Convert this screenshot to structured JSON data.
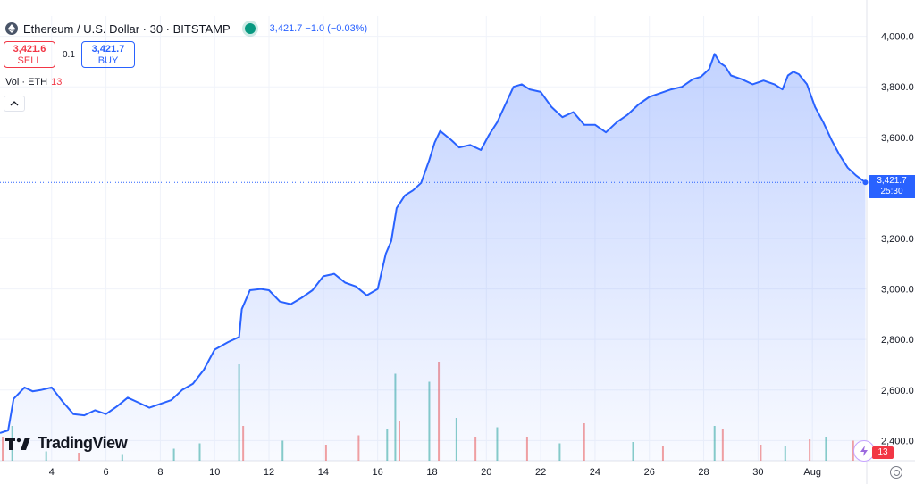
{
  "header": {
    "symbol_title": "Ethereum / U.S. Dollar · 30 · BITSTAMP",
    "last_info": "3,421.7  −1.0 (−0.03%)",
    "up_color": "#089981",
    "accent_color": "#2962ff"
  },
  "trade": {
    "sell_price": "3,421.6",
    "sell_label": "SELL",
    "spread": "0.1",
    "buy_price": "3,421.7",
    "buy_label": "BUY"
  },
  "volume_legend": {
    "label": "Vol · ETH",
    "value": "13"
  },
  "branding": {
    "logo_text": "TradingView"
  },
  "price_tag": {
    "price": "3,421.7",
    "countdown": "25:30"
  },
  "volume_tag": "13",
  "icons": [
    "ethereum-icon",
    "status-dot-icon",
    "chevron-up-icon",
    "tradingview-logo-icon",
    "lightning-icon",
    "settings-icon"
  ],
  "chart_data": {
    "type": "area",
    "title": "Ethereum / U.S. Dollar · 30 · BITSTAMP",
    "xlabel": "",
    "ylabel": "",
    "x_tick_labels": [
      "4",
      "6",
      "8",
      "10",
      "12",
      "14",
      "16",
      "18",
      "20",
      "22",
      "24",
      "26",
      "28",
      "30",
      "Aug"
    ],
    "x_tick_days": [
      4,
      6,
      8,
      10,
      12,
      14,
      16,
      18,
      20,
      22,
      24,
      26,
      28,
      30,
      32
    ],
    "y_tick_values": [
      2400,
      2600,
      2800,
      3000,
      3200,
      3400,
      3600,
      3800,
      4000
    ],
    "y_tick_labels": [
      "2,400.0",
      "2,600.0",
      "2,800.0",
      "3,000.0",
      "3,200.0",
      "3,400.0",
      "3,600.0",
      "3,800.0",
      "4,000.0"
    ],
    "ylim": [
      2320,
      4080
    ],
    "xlim": [
      2.1,
      34.0
    ],
    "grid": true,
    "last_value": 3421.7,
    "series": [
      {
        "x": [
          2.1,
          2.4,
          2.6,
          3.0,
          3.3,
          3.6,
          4.0,
          4.4,
          4.8,
          5.2,
          5.6,
          6.0,
          6.4,
          6.8,
          7.2,
          7.6,
          8.0,
          8.4,
          8.8,
          9.2,
          9.6,
          10.0,
          10.5,
          10.9,
          11.0,
          11.3,
          11.7,
          12.0,
          12.4,
          12.8,
          13.2,
          13.6,
          14.0,
          14.4,
          14.8,
          15.2,
          15.6,
          16.0,
          16.3,
          16.5,
          16.7,
          17.0,
          17.3,
          17.6,
          17.9,
          18.1,
          18.3,
          18.7,
          19.0,
          19.4,
          19.8,
          20.1,
          20.4,
          20.7,
          21.0,
          21.3,
          21.6,
          22.0,
          22.4,
          22.8,
          23.2,
          23.6,
          24.0,
          24.4,
          24.8,
          25.2,
          25.6,
          26.0,
          26.4,
          26.8,
          27.2,
          27.6,
          27.9,
          28.2,
          28.4,
          28.6,
          28.8,
          29.0,
          29.4,
          29.8,
          30.2,
          30.6,
          30.9,
          31.1,
          31.3,
          31.5,
          31.8,
          32.1,
          32.4,
          32.7,
          33.0,
          33.3,
          33.6,
          33.95
        ],
        "y": [
          2430,
          2440,
          2565,
          2610,
          2595,
          2600,
          2610,
          2555,
          2505,
          2500,
          2520,
          2505,
          2535,
          2570,
          2550,
          2530,
          2545,
          2560,
          2600,
          2625,
          2680,
          2760,
          2790,
          2810,
          2920,
          2995,
          3000,
          2995,
          2950,
          2940,
          2965,
          2995,
          3050,
          3060,
          3025,
          3010,
          2975,
          3000,
          3140,
          3190,
          3320,
          3370,
          3390,
          3420,
          3510,
          3580,
          3625,
          3590,
          3560,
          3570,
          3550,
          3610,
          3660,
          3730,
          3800,
          3810,
          3790,
          3780,
          3720,
          3680,
          3700,
          3650,
          3650,
          3620,
          3660,
          3690,
          3730,
          3760,
          3775,
          3790,
          3800,
          3830,
          3840,
          3870,
          3930,
          3895,
          3880,
          3845,
          3830,
          3810,
          3825,
          3810,
          3790,
          3845,
          3860,
          3850,
          3810,
          3720,
          3660,
          3590,
          3530,
          3480,
          3450,
          3421.7
        ]
      }
    ],
    "volume": {
      "max": 800,
      "colors": {
        "up": "#26a69a",
        "down": "#ef5350"
      },
      "bars": [
        {
          "x": 2.2,
          "v": 180,
          "up": false
        },
        {
          "x": 2.55,
          "v": 260,
          "up": true
        },
        {
          "x": 3.8,
          "v": 70,
          "up": true
        },
        {
          "x": 5.0,
          "v": 60,
          "up": false
        },
        {
          "x": 6.6,
          "v": 50,
          "up": true
        },
        {
          "x": 8.5,
          "v": 90,
          "up": true
        },
        {
          "x": 9.45,
          "v": 130,
          "up": true
        },
        {
          "x": 10.9,
          "v": 720,
          "up": true
        },
        {
          "x": 11.05,
          "v": 260,
          "up": false
        },
        {
          "x": 12.5,
          "v": 150,
          "up": true
        },
        {
          "x": 14.1,
          "v": 120,
          "up": false
        },
        {
          "x": 15.3,
          "v": 190,
          "up": false
        },
        {
          "x": 16.35,
          "v": 240,
          "up": true
        },
        {
          "x": 16.65,
          "v": 650,
          "up": true
        },
        {
          "x": 16.8,
          "v": 300,
          "up": false
        },
        {
          "x": 17.9,
          "v": 590,
          "up": true
        },
        {
          "x": 18.25,
          "v": 740,
          "up": false
        },
        {
          "x": 18.9,
          "v": 320,
          "up": true
        },
        {
          "x": 19.6,
          "v": 180,
          "up": false
        },
        {
          "x": 20.4,
          "v": 250,
          "up": true
        },
        {
          "x": 21.5,
          "v": 180,
          "up": false
        },
        {
          "x": 22.7,
          "v": 130,
          "up": true
        },
        {
          "x": 23.6,
          "v": 280,
          "up": false
        },
        {
          "x": 25.4,
          "v": 140,
          "up": true
        },
        {
          "x": 26.5,
          "v": 110,
          "up": false
        },
        {
          "x": 28.4,
          "v": 260,
          "up": true
        },
        {
          "x": 28.7,
          "v": 240,
          "up": false
        },
        {
          "x": 30.1,
          "v": 120,
          "up": false
        },
        {
          "x": 31.0,
          "v": 110,
          "up": true
        },
        {
          "x": 31.9,
          "v": 160,
          "up": false
        },
        {
          "x": 32.5,
          "v": 180,
          "up": true
        },
        {
          "x": 33.5,
          "v": 150,
          "up": false
        }
      ]
    }
  }
}
